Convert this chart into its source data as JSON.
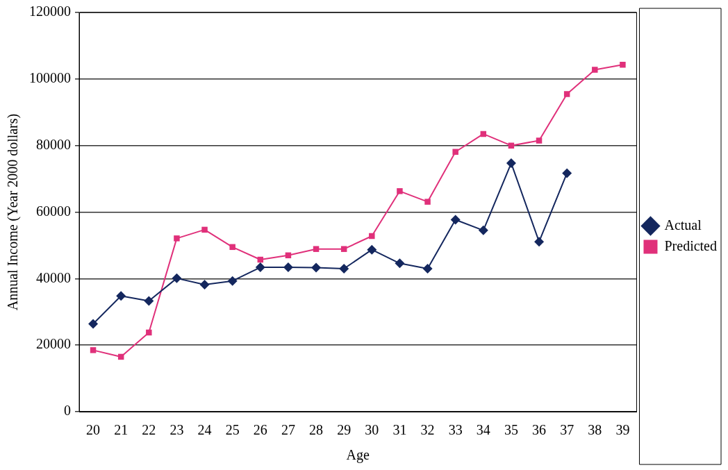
{
  "chart_data": {
    "type": "line",
    "xlabel": "Age",
    "ylabel": "Annual Income (Year 2000 dollars)",
    "categories": [
      "20",
      "21",
      "22",
      "23",
      "24",
      "25",
      "26",
      "27",
      "28",
      "29",
      "30",
      "31",
      "32",
      "33",
      "34",
      "35",
      "36",
      "37",
      "38",
      "39"
    ],
    "series": [
      {
        "name": "Actual",
        "color": "#14275e",
        "marker": "diamond",
        "values": [
          26400,
          34800,
          33300,
          40100,
          38200,
          39300,
          43400,
          43400,
          43300,
          43000,
          48700,
          44600,
          43000,
          57700,
          54500,
          74700,
          51100,
          71700,
          null,
          null
        ]
      },
      {
        "name": "Predicted",
        "color": "#e0307a",
        "marker": "square",
        "values": [
          18500,
          16500,
          23800,
          52100,
          54700,
          49500,
          45700,
          47000,
          48900,
          48900,
          52800,
          66300,
          63100,
          78100,
          83500,
          80000,
          81500,
          95500,
          102800,
          104300
        ]
      }
    ],
    "ylim": [
      0,
      120000
    ],
    "yticks": [
      0,
      20000,
      40000,
      60000,
      80000,
      100000,
      120000
    ],
    "grid": "y",
    "legend": "right"
  }
}
